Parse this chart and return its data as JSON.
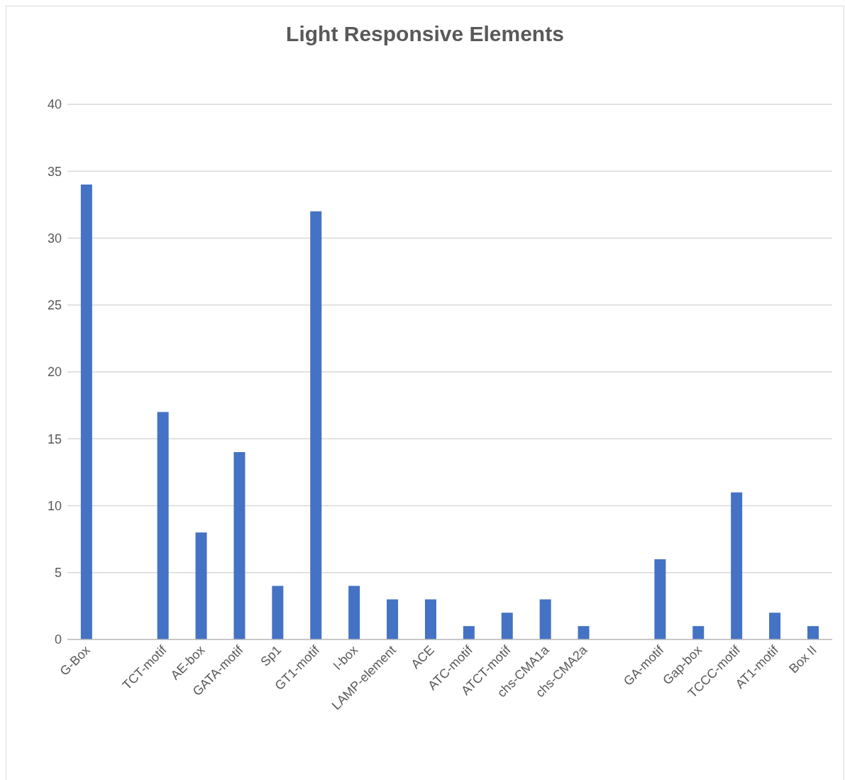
{
  "chart_data": {
    "type": "bar",
    "title": "Light Responsive Elements",
    "categories": [
      "G-Box",
      null,
      "TCT-motif",
      "AE-box",
      "GATA-motif",
      "Sp1",
      "GT1-motif",
      "I-box",
      "LAMP-element",
      "ACE",
      "ATC-motif",
      "ATCT-motif",
      "chs-CMA1a",
      "chs-CMA2a",
      null,
      "GA-motif",
      "Gap-box",
      "TCCC-motif",
      "AT1-motif",
      "Box II"
    ],
    "values": [
      34,
      null,
      17,
      8,
      14,
      4,
      32,
      4,
      3,
      3,
      1,
      2,
      3,
      1,
      null,
      6,
      1,
      11,
      2,
      1
    ],
    "color": "#4472c4",
    "ylim": [
      0,
      40
    ],
    "yticks": [
      0,
      5,
      10,
      15,
      20,
      25,
      30,
      35,
      40
    ],
    "grid": "y",
    "legend": false
  }
}
